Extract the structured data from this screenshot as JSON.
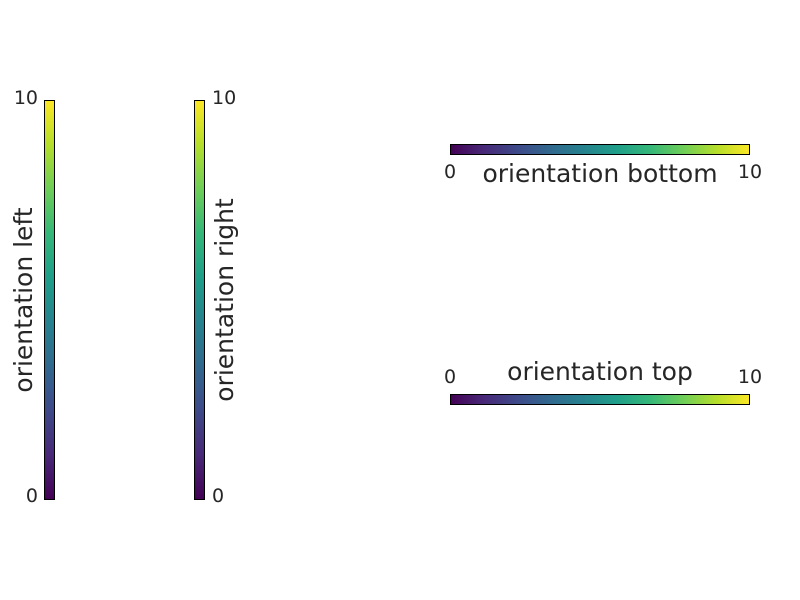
{
  "chart_data": [
    {
      "type": "colorbar",
      "orientation": "left",
      "label": "orientation left",
      "range": [
        0,
        10
      ],
      "ticks": [
        "0",
        "10"
      ],
      "colormap": "viridis"
    },
    {
      "type": "colorbar",
      "orientation": "right",
      "label": "orientation right",
      "range": [
        0,
        10
      ],
      "ticks": [
        "0",
        "10"
      ],
      "colormap": "viridis"
    },
    {
      "type": "colorbar",
      "orientation": "bottom",
      "label": "orientation bottom",
      "range": [
        0,
        10
      ],
      "ticks": [
        "0",
        "10"
      ],
      "colormap": "viridis"
    },
    {
      "type": "colorbar",
      "orientation": "top",
      "label": "orientation top",
      "range": [
        0,
        10
      ],
      "ticks": [
        "0",
        "10"
      ],
      "colormap": "viridis"
    }
  ],
  "colors": {
    "viridis": [
      "#440154",
      "#482878",
      "#3e4989",
      "#31688e",
      "#26828e",
      "#1f9e89",
      "#35b779",
      "#6ece58",
      "#b5de2b",
      "#fde725"
    ]
  }
}
